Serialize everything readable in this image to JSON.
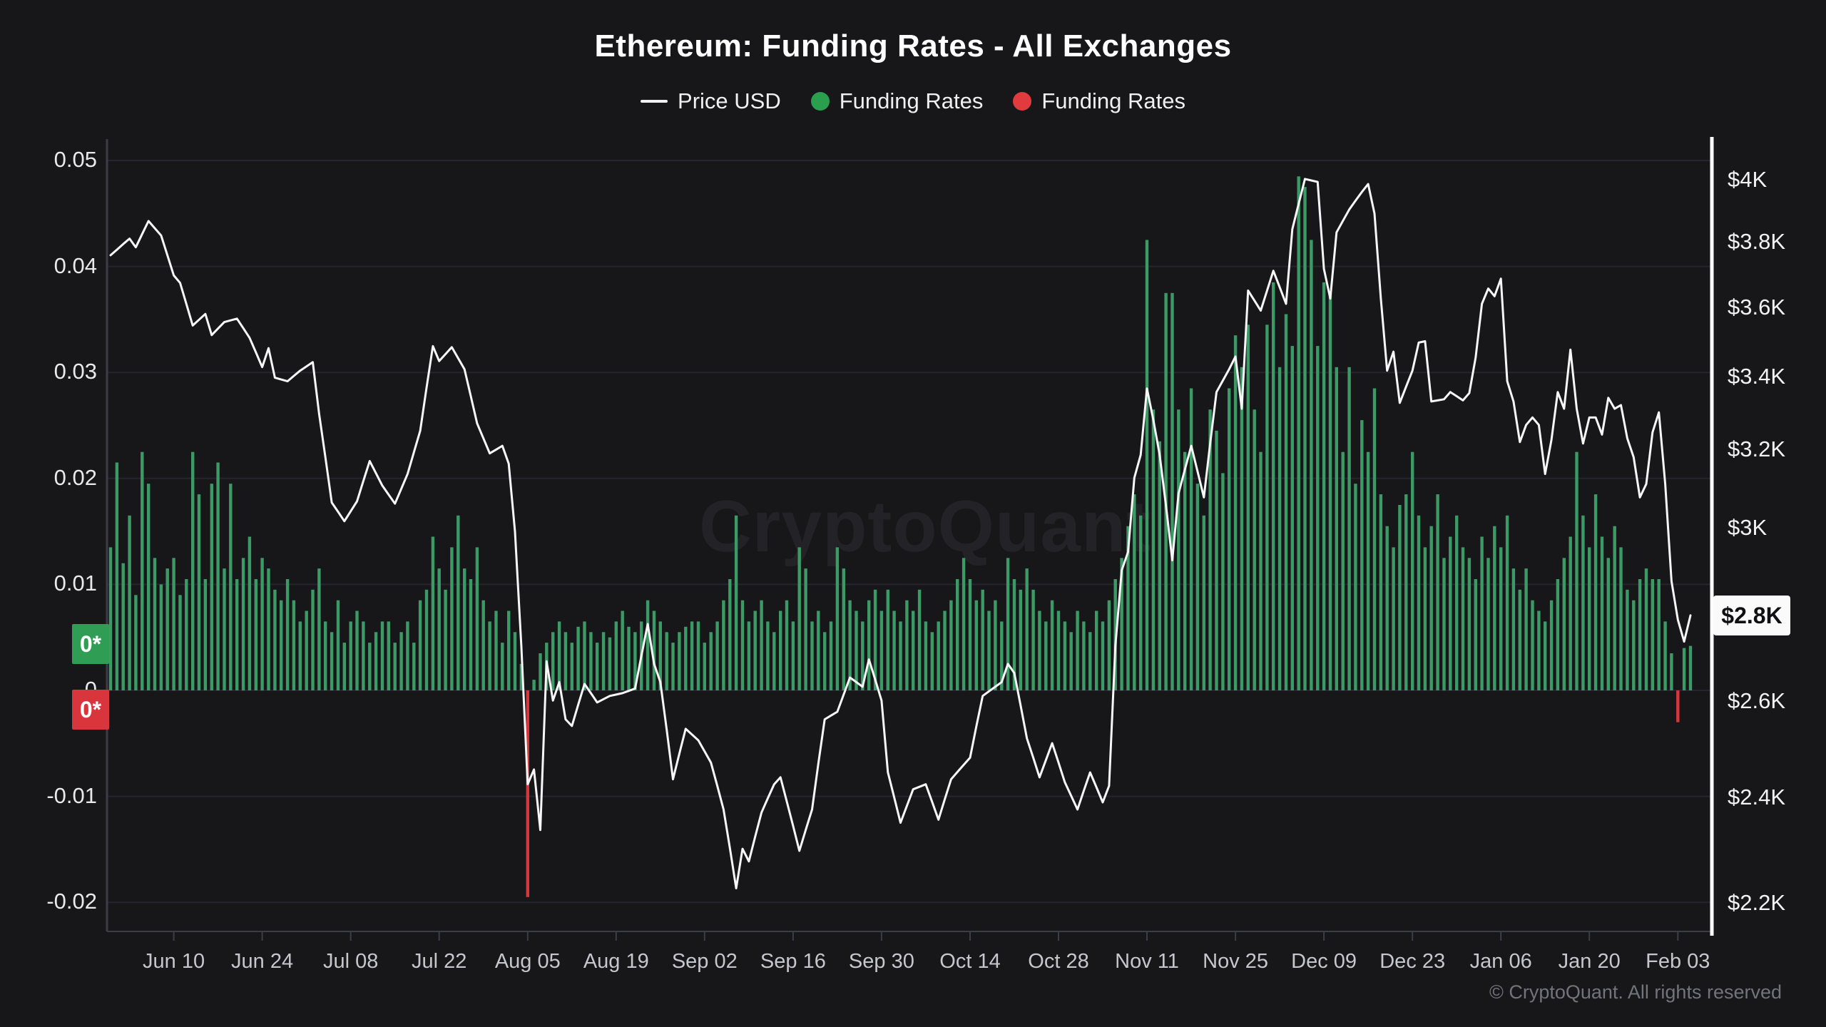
{
  "header": {
    "title": "Ethereum: Funding Rates - All Exchanges",
    "legend": [
      {
        "label": "Price USD",
        "marker": "line",
        "color": "#f2f2f2"
      },
      {
        "label": "Funding Rates",
        "marker": "dot",
        "color": "#2aa04f"
      },
      {
        "label": "Funding Rates",
        "marker": "dot",
        "color": "#e23b3f"
      }
    ]
  },
  "watermark": "CryptoQuant",
  "footer": {
    "copyright": "© CryptoQuant. All rights reserved"
  },
  "badges": {
    "green_last": "0*",
    "red_last": "0*",
    "current_price": "$2.8K"
  },
  "chart_data": {
    "type": "mixed-bar-line",
    "title": "Ethereum: Funding Rates - All Exchanges",
    "grid": "horizontal-only",
    "legend_position": "top-center",
    "x_axis": {
      "start_day": "May 31",
      "days_total": 251,
      "tick_labels": [
        "Jun 10",
        "Jun 24",
        "Jul 08",
        "Jul 22",
        "Aug 05",
        "Aug 19",
        "Sep 02",
        "Sep 16",
        "Sep 30",
        "Oct 14",
        "Oct 28",
        "Nov 11",
        "Nov 25",
        "Dec 09",
        "Dec 23",
        "Jan 06",
        "Jan 20",
        "Feb 03"
      ],
      "tick_day_index": [
        10,
        24,
        38,
        52,
        66,
        80,
        94,
        108,
        122,
        136,
        150,
        164,
        178,
        192,
        206,
        220,
        234,
        248
      ]
    },
    "y_left": {
      "name": "Funding Rates",
      "tick_values": [
        0.05,
        0.04,
        0.03,
        0.02,
        0.01,
        0,
        -0.01,
        -0.02
      ],
      "tick_labels": [
        "0.05",
        "0.04",
        "0.03",
        "0.02",
        "0.01",
        "0",
        "-0.01",
        "-0.02"
      ],
      "range": [
        -0.023,
        0.052
      ]
    },
    "y_right": {
      "name": "Price USD",
      "scale": "log",
      "tick_values": [
        4000,
        3800,
        3600,
        3400,
        3200,
        3000,
        2800,
        2600,
        2400,
        2200
      ],
      "tick_labels": [
        "$4K",
        "$3.8K",
        "$3.6K",
        "$3.4K",
        "$3.2K",
        "$3K",
        "$2.8K",
        "$2.6K",
        "$2.4K",
        "$2.2K"
      ]
    },
    "funding_rates": {
      "series_name": "Funding Rates",
      "positive_color": "#3c9a66",
      "negative_color": "#d8363c",
      "values": [
        0.0135,
        0.0215,
        0.012,
        0.0165,
        0.009,
        0.0225,
        0.0195,
        0.0125,
        0.01,
        0.0115,
        0.0125,
        0.009,
        0.0105,
        0.0225,
        0.0185,
        0.0105,
        0.0195,
        0.0215,
        0.0115,
        0.0195,
        0.0105,
        0.0125,
        0.0145,
        0.0105,
        0.0125,
        0.0115,
        0.0095,
        0.0085,
        0.0105,
        0.0085,
        0.0065,
        0.0075,
        0.0095,
        0.0115,
        0.0065,
        0.0055,
        0.0085,
        0.0045,
        0.0065,
        0.0075,
        0.0065,
        0.0045,
        0.0055,
        0.0065,
        0.0065,
        0.0045,
        0.0055,
        0.0065,
        0.0045,
        0.0085,
        0.0095,
        0.0145,
        0.0115,
        0.0095,
        0.0135,
        0.0165,
        0.0115,
        0.0105,
        0.0135,
        0.0085,
        0.0065,
        0.0075,
        0.0045,
        0.0075,
        0.0055,
        0.0025,
        -0.0195,
        0.001,
        0.0035,
        0.0045,
        0.0055,
        0.0065,
        0.0055,
        0.0045,
        0.006,
        0.0065,
        0.0055,
        0.0045,
        0.0055,
        0.005,
        0.0065,
        0.0075,
        0.006,
        0.0055,
        0.0065,
        0.0085,
        0.0075,
        0.0065,
        0.0055,
        0.0045,
        0.0055,
        0.006,
        0.0065,
        0.0065,
        0.0045,
        0.0055,
        0.0065,
        0.0085,
        0.0105,
        0.0165,
        0.0085,
        0.0065,
        0.0075,
        0.0085,
        0.0065,
        0.0055,
        0.0075,
        0.0085,
        0.0065,
        0.0135,
        0.0115,
        0.0065,
        0.0075,
        0.0055,
        0.0065,
        0.0135,
        0.0115,
        0.0085,
        0.0075,
        0.0065,
        0.0085,
        0.0095,
        0.0075,
        0.0095,
        0.0075,
        0.0065,
        0.0085,
        0.0075,
        0.0095,
        0.0065,
        0.0055,
        0.0065,
        0.0075,
        0.0085,
        0.0105,
        0.0125,
        0.0105,
        0.0085,
        0.0095,
        0.0075,
        0.0085,
        0.0065,
        0.0125,
        0.0105,
        0.0095,
        0.0115,
        0.0095,
        0.0075,
        0.0065,
        0.0085,
        0.0075,
        0.0065,
        0.0055,
        0.0075,
        0.0065,
        0.0055,
        0.0075,
        0.0065,
        0.0085,
        0.0105,
        0.0125,
        0.0155,
        0.0185,
        0.0165,
        0.0425,
        0.0265,
        0.0235,
        0.0375,
        0.0375,
        0.0265,
        0.0225,
        0.0285,
        0.0195,
        0.0165,
        0.0265,
        0.0245,
        0.0205,
        0.0285,
        0.0335,
        0.0305,
        0.0345,
        0.0265,
        0.0225,
        0.0345,
        0.0385,
        0.0305,
        0.0355,
        0.0325,
        0.0485,
        0.0475,
        0.0425,
        0.0325,
        0.0385,
        0.0375,
        0.0305,
        0.0225,
        0.0305,
        0.0195,
        0.0255,
        0.0225,
        0.0285,
        0.0185,
        0.0155,
        0.0135,
        0.0175,
        0.0185,
        0.0225,
        0.0165,
        0.0135,
        0.0155,
        0.0185,
        0.0125,
        0.0145,
        0.0165,
        0.0135,
        0.0125,
        0.0105,
        0.0145,
        0.0125,
        0.0155,
        0.0135,
        0.0165,
        0.0115,
        0.0095,
        0.0115,
        0.0085,
        0.0075,
        0.0065,
        0.0085,
        0.0105,
        0.0125,
        0.0145,
        0.0225,
        0.0165,
        0.0135,
        0.0185,
        0.0145,
        0.0125,
        0.0155,
        0.0135,
        0.0095,
        0.0085,
        0.0105,
        0.0115,
        0.0105,
        0.0105,
        0.0065,
        0.0035,
        -0.003,
        0.004,
        0.0042
      ]
    },
    "price_usd": {
      "series_name": "Price USD",
      "color": "#f7f7f7",
      "anchors": [
        [
          0,
          3760
        ],
        [
          2,
          3795
        ],
        [
          3,
          3812
        ],
        [
          4,
          3785
        ],
        [
          6,
          3868
        ],
        [
          8,
          3822
        ],
        [
          10,
          3698
        ],
        [
          11,
          3675
        ],
        [
          13,
          3548
        ],
        [
          15,
          3582
        ],
        [
          16,
          3520
        ],
        [
          18,
          3558
        ],
        [
          20,
          3568
        ],
        [
          22,
          3512
        ],
        [
          24,
          3428
        ],
        [
          25,
          3482
        ],
        [
          26,
          3398
        ],
        [
          28,
          3388
        ],
        [
          30,
          3418
        ],
        [
          32,
          3442
        ],
        [
          33,
          3298
        ],
        [
          35,
          3065
        ],
        [
          37,
          3018
        ],
        [
          39,
          3068
        ],
        [
          41,
          3172
        ],
        [
          43,
          3108
        ],
        [
          45,
          3062
        ],
        [
          47,
          3138
        ],
        [
          49,
          3252
        ],
        [
          51,
          3488
        ],
        [
          52,
          3445
        ],
        [
          54,
          3485
        ],
        [
          56,
          3422
        ],
        [
          58,
          3272
        ],
        [
          60,
          3192
        ],
        [
          62,
          3212
        ],
        [
          63,
          3165
        ],
        [
          64,
          2992
        ],
        [
          65,
          2722
        ],
        [
          66,
          2428
        ],
        [
          67,
          2458
        ],
        [
          68,
          2338
        ],
        [
          69,
          2688
        ],
        [
          70,
          2602
        ],
        [
          71,
          2642
        ],
        [
          72,
          2562
        ],
        [
          73,
          2548
        ],
        [
          75,
          2638
        ],
        [
          77,
          2598
        ],
        [
          79,
          2612
        ],
        [
          81,
          2618
        ],
        [
          83,
          2628
        ],
        [
          85,
          2772
        ],
        [
          86,
          2682
        ],
        [
          87,
          2642
        ],
        [
          89,
          2438
        ],
        [
          91,
          2542
        ],
        [
          93,
          2518
        ],
        [
          95,
          2472
        ],
        [
          97,
          2378
        ],
        [
          99,
          2228
        ],
        [
          100,
          2302
        ],
        [
          101,
          2278
        ],
        [
          103,
          2372
        ],
        [
          105,
          2428
        ],
        [
          106,
          2442
        ],
        [
          109,
          2298
        ],
        [
          111,
          2378
        ],
        [
          113,
          2562
        ],
        [
          115,
          2578
        ],
        [
          117,
          2652
        ],
        [
          119,
          2632
        ],
        [
          120,
          2692
        ],
        [
          122,
          2602
        ],
        [
          123,
          2452
        ],
        [
          125,
          2352
        ],
        [
          127,
          2418
        ],
        [
          129,
          2428
        ],
        [
          131,
          2358
        ],
        [
          133,
          2438
        ],
        [
          136,
          2482
        ],
        [
          138,
          2612
        ],
        [
          141,
          2642
        ],
        [
          142,
          2682
        ],
        [
          143,
          2662
        ],
        [
          145,
          2522
        ],
        [
          147,
          2442
        ],
        [
          149,
          2512
        ],
        [
          151,
          2432
        ],
        [
          153,
          2378
        ],
        [
          155,
          2452
        ],
        [
          157,
          2392
        ],
        [
          158,
          2425
        ],
        [
          159,
          2722
        ],
        [
          160,
          2898
        ],
        [
          161,
          2942
        ],
        [
          162,
          3128
        ],
        [
          163,
          3188
        ],
        [
          164,
          3368
        ],
        [
          165,
          3282
        ],
        [
          166,
          3188
        ],
        [
          167,
          3058
        ],
        [
          168,
          2922
        ],
        [
          169,
          3088
        ],
        [
          171,
          3212
        ],
        [
          173,
          3078
        ],
        [
          175,
          3358
        ],
        [
          177,
          3422
        ],
        [
          178,
          3458
        ],
        [
          179,
          3312
        ],
        [
          180,
          3652
        ],
        [
          182,
          3592
        ],
        [
          184,
          3712
        ],
        [
          186,
          3612
        ],
        [
          187,
          3842
        ],
        [
          189,
          4005
        ],
        [
          191,
          3995
        ],
        [
          192,
          3718
        ],
        [
          193,
          3628
        ],
        [
          194,
          3832
        ],
        [
          196,
          3905
        ],
        [
          198,
          3962
        ],
        [
          199,
          3988
        ],
        [
          200,
          3892
        ],
        [
          201,
          3628
        ],
        [
          202,
          3418
        ],
        [
          203,
          3472
        ],
        [
          204,
          3328
        ],
        [
          206,
          3418
        ],
        [
          207,
          3498
        ],
        [
          208,
          3502
        ],
        [
          209,
          3332
        ],
        [
          211,
          3338
        ],
        [
          212,
          3358
        ],
        [
          214,
          3335
        ],
        [
          215,
          3355
        ],
        [
          216,
          3455
        ],
        [
          217,
          3612
        ],
        [
          218,
          3658
        ],
        [
          219,
          3635
        ],
        [
          220,
          3688
        ],
        [
          221,
          3388
        ],
        [
          222,
          3332
        ],
        [
          223,
          3222
        ],
        [
          224,
          3268
        ],
        [
          225,
          3288
        ],
        [
          226,
          3268
        ],
        [
          227,
          3138
        ],
        [
          228,
          3228
        ],
        [
          229,
          3358
        ],
        [
          230,
          3312
        ],
        [
          231,
          3478
        ],
        [
          232,
          3312
        ],
        [
          233,
          3218
        ],
        [
          234,
          3288
        ],
        [
          235,
          3288
        ],
        [
          236,
          3242
        ],
        [
          237,
          3342
        ],
        [
          238,
          3312
        ],
        [
          239,
          3322
        ],
        [
          240,
          3232
        ],
        [
          241,
          3182
        ],
        [
          242,
          3078
        ],
        [
          243,
          3112
        ],
        [
          244,
          3248
        ],
        [
          245,
          3302
        ],
        [
          246,
          3112
        ],
        [
          247,
          2872
        ],
        [
          248,
          2782
        ],
        [
          249,
          2732
        ],
        [
          250,
          2792
        ]
      ],
      "last_value_label": "$2.8K"
    },
    "colors": {
      "background": "#17171a",
      "gridline": "#25252f",
      "axis": "#3d3d47",
      "right_axis": "#ffffff",
      "bar_green": "#3c9a66",
      "bar_red": "#d8363c",
      "price_line": "#f7f7f7"
    }
  }
}
